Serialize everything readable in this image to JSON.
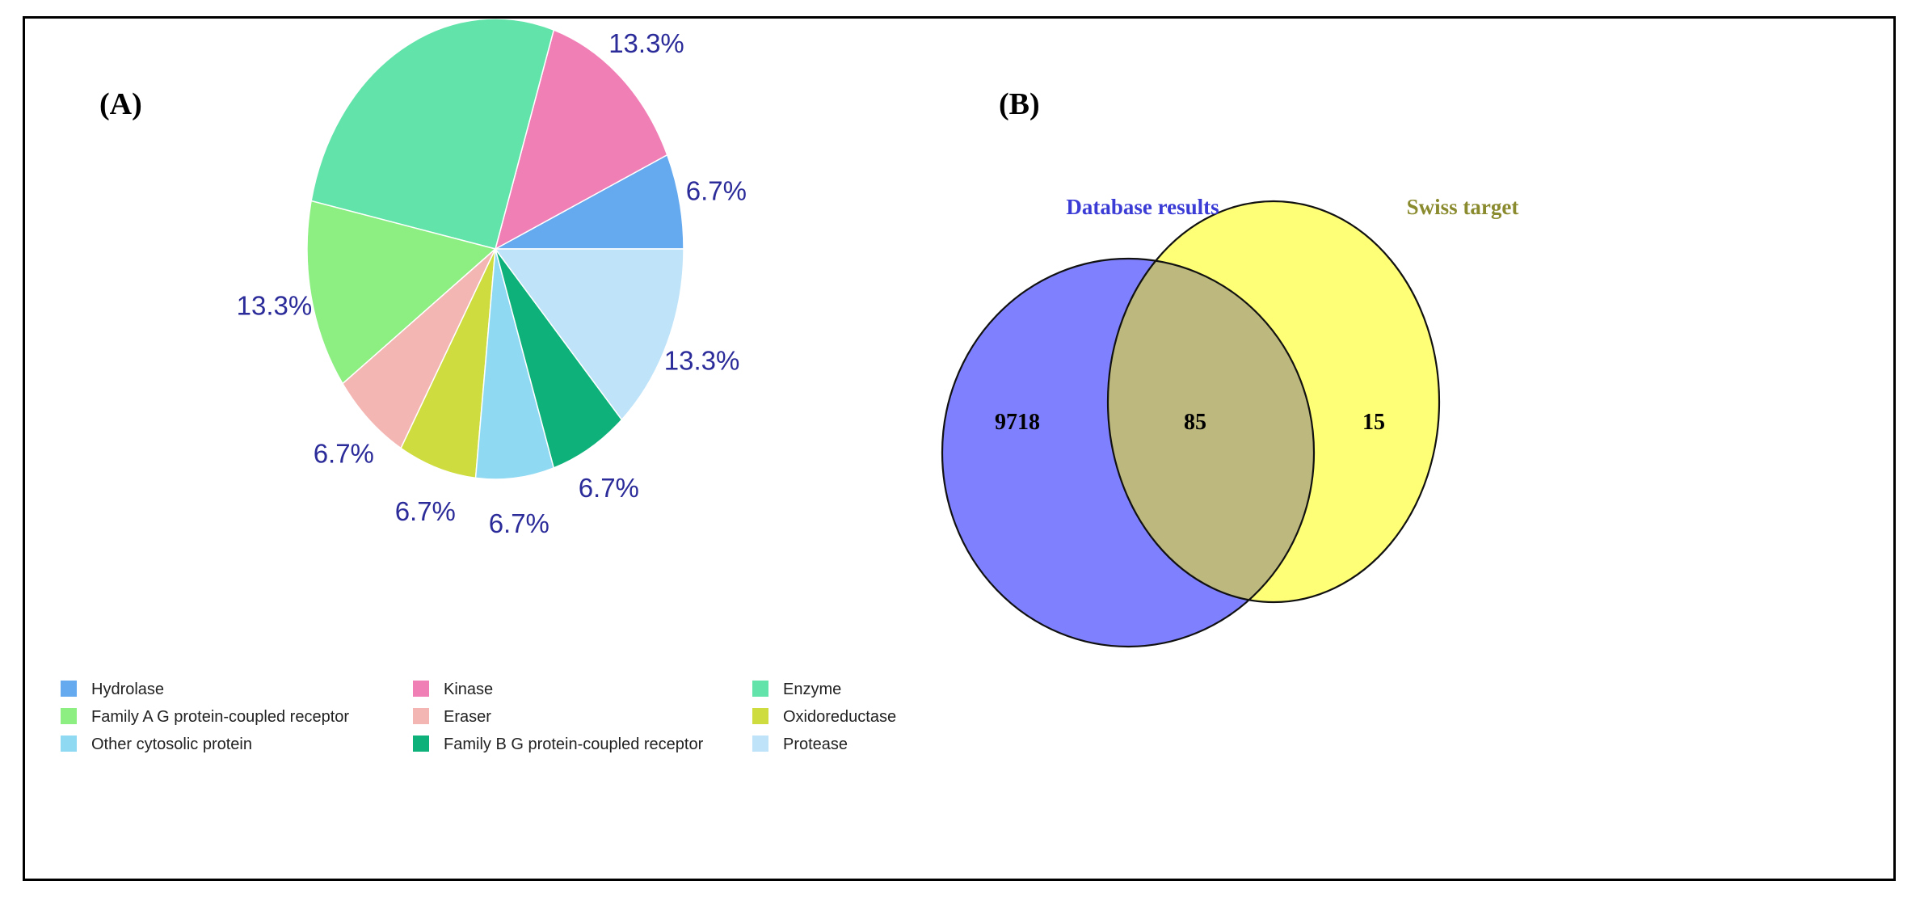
{
  "panels": {
    "a_label": "(A)",
    "b_label": "(B)"
  },
  "chart_data": [
    {
      "type": "pie",
      "title": "",
      "slices": [
        {
          "label": "Hydrolase",
          "value": 6.7,
          "display": "6.7%",
          "color": "#65a9ee"
        },
        {
          "label": "Kinase",
          "value": 13.3,
          "display": "13.3%",
          "color": "#f07fb6"
        },
        {
          "label": "Enzyme",
          "value": 26.7,
          "display": "26.7%",
          "color": "#62e3aa"
        },
        {
          "label": "Family A G protein-coupled receptor",
          "value": 13.3,
          "display": "13.3%",
          "color": "#8dee82"
        },
        {
          "label": "Eraser",
          "value": 6.7,
          "display": "6.7%",
          "color": "#f4b6b3"
        },
        {
          "label": "Oxidoreductase",
          "value": 6.7,
          "display": "6.7%",
          "color": "#cfdc3f"
        },
        {
          "label": "Other cytosolic protein",
          "value": 6.7,
          "display": "6.7%",
          "color": "#90d9f2"
        },
        {
          "label": "Family B G protein-coupled receptor",
          "value": 6.7,
          "display": "6.7%",
          "color": "#0fb17a"
        },
        {
          "label": "Protease",
          "value": 13.3,
          "display": "13.3%",
          "color": "#bfe3f8"
        }
      ],
      "legend": {
        "placement": "bottom",
        "items": [
          "Hydrolase",
          "Kinase",
          "Enzyme",
          "Family A G protein-coupled receptor",
          "Eraser",
          "Oxidoreductase",
          "Other cytosolic protein",
          "Family B G protein-coupled receptor",
          "Protease"
        ]
      }
    },
    {
      "type": "venn",
      "sets": [
        {
          "name": "Database results",
          "only": "9718",
          "color": "#7f80fe",
          "title_color": "#3b3bd6"
        },
        {
          "name": "Swiss target",
          "only": "15",
          "color": "#ffff77",
          "title_color": "#8a8a2e"
        }
      ],
      "intersection": "85",
      "intersection_color": "#bdb87e"
    }
  ]
}
